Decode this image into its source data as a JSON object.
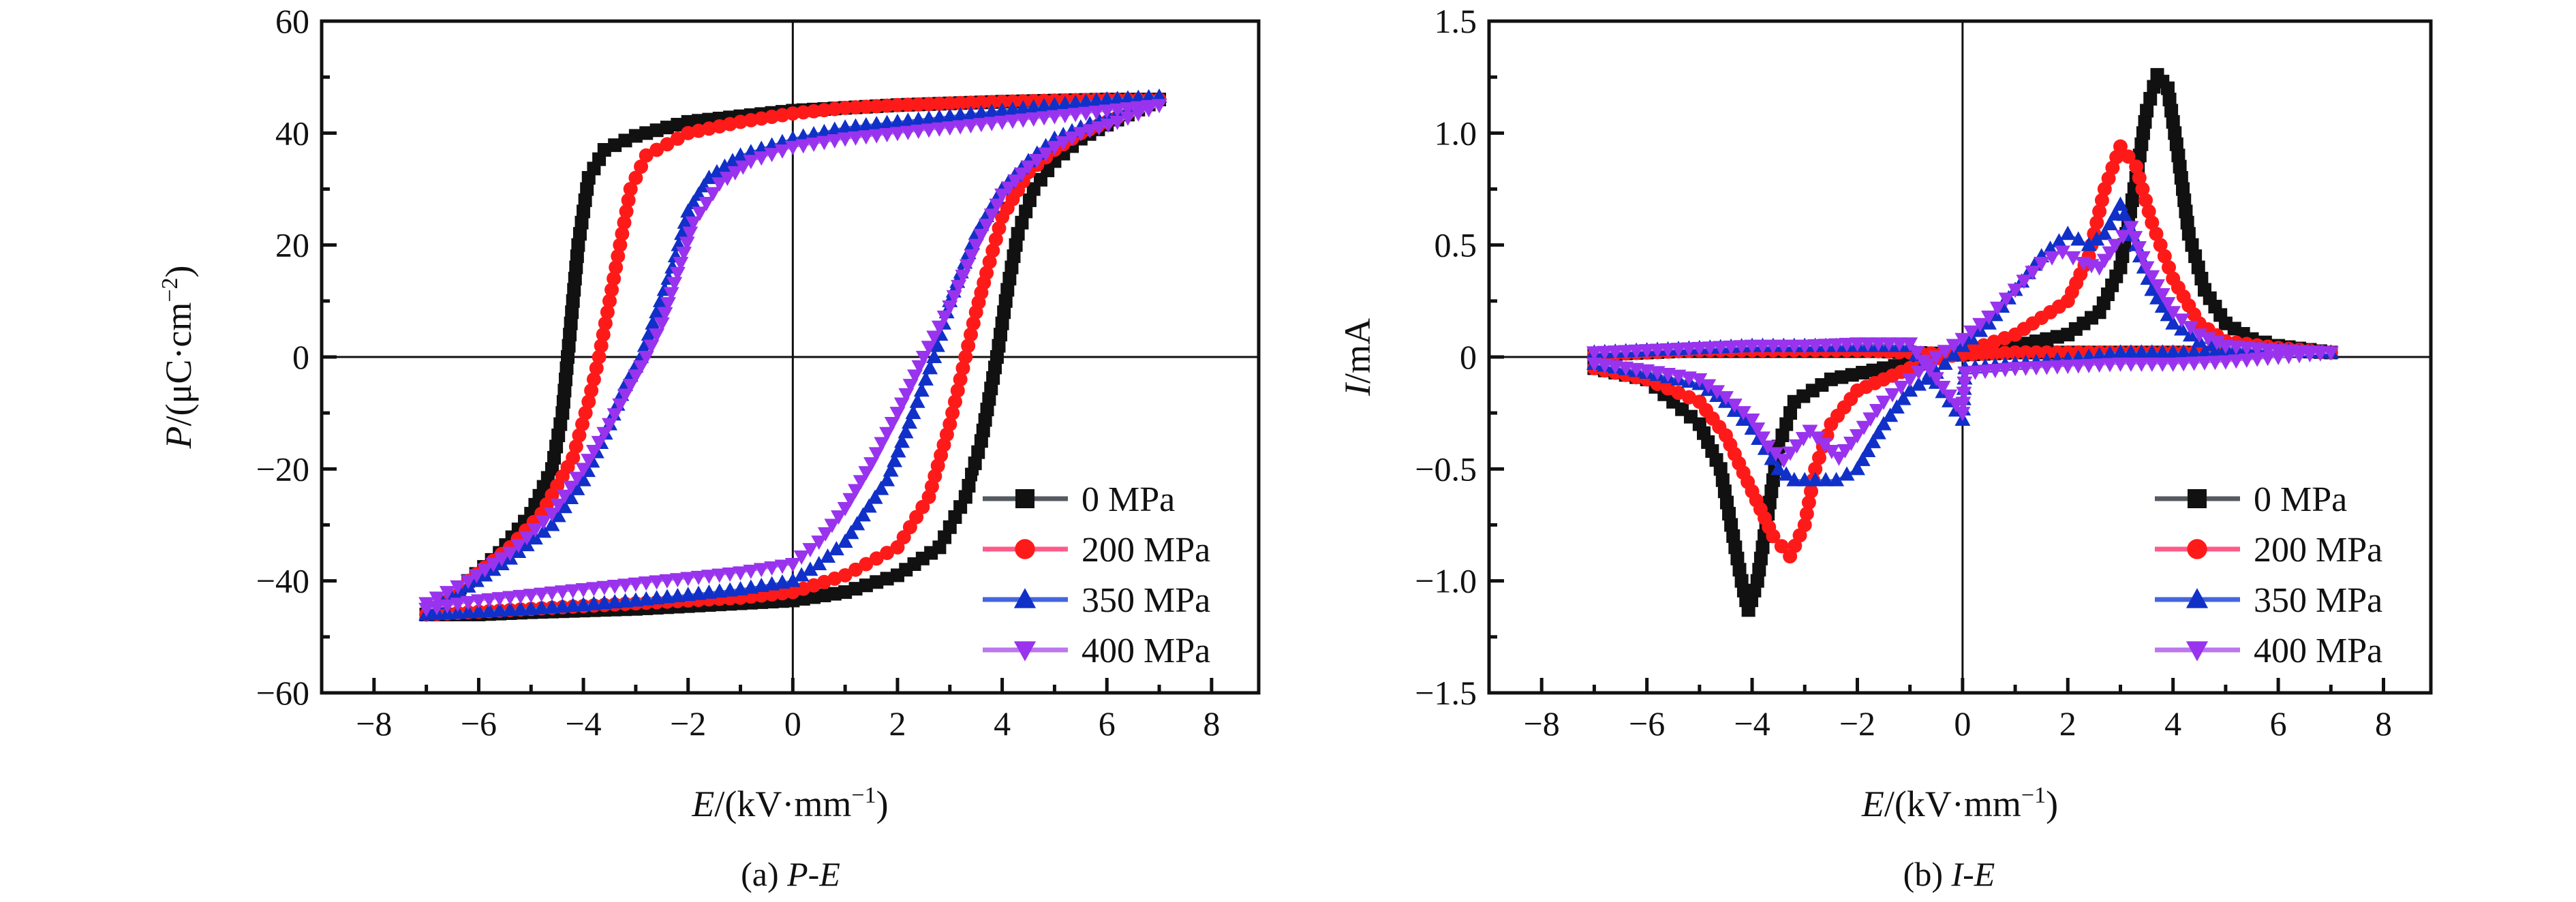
{
  "chart_data": [
    {
      "id": "a",
      "type": "scatter",
      "title": "",
      "caption_prefix": "(a) ",
      "caption_italic": "P-E",
      "xlabel_italic": "E",
      "xlabel_unit": "/(kV·mm",
      "xlabel_sup": "−1",
      "xlabel_close": ")",
      "ylabel_italic": "P",
      "ylabel_unit": "/(μC·cm",
      "ylabel_sup": "−2",
      "ylabel_close": ")",
      "xlim": [
        -9,
        8.9
      ],
      "ylim": [
        -60,
        60
      ],
      "xticks": [
        -8,
        -6,
        -4,
        -2,
        0,
        2,
        4,
        6,
        8
      ],
      "xtick_labels": [
        "−8",
        "−6",
        "−4",
        "−2",
        "0",
        "2",
        "4",
        "6",
        "8"
      ],
      "yticks": [
        -60,
        -40,
        -20,
        0,
        20,
        40,
        60
      ],
      "ytick_labels": [
        "−60",
        "−40",
        "−20",
        "0",
        "20",
        "40",
        "60"
      ],
      "zero_lines": true,
      "grid": false,
      "legend_position": "bottom-right",
      "series": [
        {
          "name": "0 MPa",
          "marker": "square",
          "color": "#111111",
          "line_color": "#555a60",
          "x": [
            -7,
            -6.2,
            -5.6,
            -5,
            -4.6,
            -4.4,
            -4.3,
            -4.2,
            -4.1,
            -3.9,
            -3.6,
            -3,
            -2,
            -1,
            0,
            1,
            2,
            3,
            4,
            5,
            6,
            7,
            6,
            5.5,
            5,
            4.6,
            4.3,
            4.1,
            3.9,
            3.6,
            3.3,
            2.8,
            2,
            1,
            0,
            -1,
            -2,
            -3,
            -4,
            -5,
            -6,
            -7
          ],
          "y": [
            -46,
            -40,
            -35,
            -28,
            -20,
            -10,
            0,
            10,
            20,
            32,
            37,
            39.5,
            42,
            43,
            44,
            44.5,
            45,
            45.3,
            45.6,
            45.8,
            46,
            46,
            41.5,
            39,
            35,
            30,
            22,
            12,
            0,
            -15,
            -25,
            -34,
            -39,
            -42,
            -43.5,
            -44,
            -44.5,
            -45,
            -45.3,
            -45.6,
            -46,
            -46
          ]
        },
        {
          "name": "200 MPa",
          "marker": "circle",
          "color": "#ff1a1a",
          "line_color": "#ff5a8a",
          "x": [
            -7,
            -6.2,
            -5.4,
            -4.8,
            -4.2,
            -3.9,
            -3.7,
            -3.5,
            -3.3,
            -3.1,
            -2.8,
            -2,
            -1,
            0,
            1,
            2,
            3,
            4,
            5,
            6,
            7,
            6,
            5.5,
            5,
            4.5,
            4,
            3.7,
            3.5,
            3.3,
            3,
            2.6,
            2,
            1,
            0,
            -1,
            -2,
            -3,
            -4,
            -5,
            -6,
            -7
          ],
          "y": [
            -46,
            -40,
            -34,
            -28,
            -18,
            -8,
            0,
            10,
            20,
            30,
            36,
            40,
            42,
            43.5,
            44.5,
            45,
            45.3,
            45.6,
            45.8,
            46,
            46,
            42,
            40,
            37,
            33,
            25,
            15,
            8,
            0,
            -12,
            -25,
            -34,
            -39,
            -42,
            -43,
            -43.5,
            -44,
            -44.5,
            -45,
            -45.5,
            -46
          ]
        },
        {
          "name": "350 MPa",
          "marker": "triangle-up",
          "color": "#1030c8",
          "line_color": "#4466dd",
          "x": [
            -7,
            -6.2,
            -5.4,
            -4.6,
            -4,
            -3.5,
            -3.2,
            -2.9,
            -2.6,
            -2.3,
            -2,
            -1.6,
            -1,
            0,
            1,
            2,
            3,
            4,
            5,
            6,
            7,
            6.2,
            5.5,
            5,
            4.5,
            4,
            3.5,
            3,
            2.7,
            2.3,
            1.8,
            1,
            0.5,
            0,
            -1,
            -2,
            -3,
            -4,
            -5,
            -6,
            -7
          ],
          "y": [
            -46,
            -41,
            -36,
            -30,
            -22,
            -12,
            -5,
            0,
            8,
            16,
            26,
            32,
            36,
            39,
            41,
            42,
            43,
            44,
            45,
            46,
            46.5,
            43.5,
            41,
            39,
            35,
            30,
            22,
            10,
            0,
            -10,
            -22,
            -33,
            -37,
            -40,
            -41.5,
            -42.5,
            -43.5,
            -44.3,
            -45,
            -45.5,
            -46
          ]
        },
        {
          "name": "400 MPa",
          "marker": "triangle-down",
          "color": "#9933ee",
          "line_color": "#bb77ee",
          "x": [
            -7,
            -6.2,
            -5.4,
            -4.6,
            -4,
            -3.5,
            -3.1,
            -2.8,
            -2.5,
            -2.2,
            -1.9,
            -1.4,
            -0.8,
            0,
            1,
            2,
            3,
            4,
            5,
            6,
            7,
            6.2,
            5.5,
            5,
            4.5,
            4,
            3.5,
            3,
            2.5,
            2,
            1.5,
            1,
            0.5,
            0,
            -1,
            -2,
            -3,
            -4,
            -5,
            -6,
            -7
          ],
          "y": [
            -44,
            -40,
            -35,
            -28,
            -20,
            -12,
            -5,
            0,
            6,
            15,
            24,
            31,
            35,
            37.5,
            39,
            40,
            41,
            42,
            43,
            44,
            45,
            42,
            40,
            37.5,
            34,
            29,
            20,
            9,
            0,
            -10,
            -19,
            -27,
            -33,
            -37,
            -38.5,
            -39.5,
            -40.5,
            -41.5,
            -42.5,
            -43.5,
            -45
          ]
        }
      ]
    },
    {
      "id": "b",
      "type": "scatter",
      "title": "",
      "caption_prefix": "(b) ",
      "caption_italic": "I-E",
      "xlabel_italic": "E",
      "xlabel_unit": "/(kV·mm",
      "xlabel_sup": "−1",
      "xlabel_close": ")",
      "ylabel_italic": "I",
      "ylabel_unit": "/mA",
      "ylabel_sup": "",
      "ylabel_close": "",
      "xlim": [
        -9,
        8.9
      ],
      "ylim": [
        -1.5,
        1.5
      ],
      "xticks": [
        -8,
        -6,
        -4,
        -2,
        0,
        2,
        4,
        6,
        8
      ],
      "xtick_labels": [
        "−8",
        "−6",
        "−4",
        "−2",
        "0",
        "2",
        "4",
        "6",
        "8"
      ],
      "yticks": [
        -1.5,
        -1.0,
        -0.5,
        0,
        0.5,
        1.0,
        1.5
      ],
      "ytick_labels": [
        "−1.5",
        "−1.0",
        "−0.5",
        "0",
        "0.5",
        "1.0",
        "1.5"
      ],
      "zero_lines": true,
      "grid": false,
      "legend_position": "bottom-right",
      "series": [
        {
          "name": "0 MPa",
          "marker": "square",
          "color": "#111111",
          "line_color": "#555a60",
          "x": [
            -7,
            -6,
            -5,
            -4.6,
            -4.4,
            -4.2,
            -4.07,
            -3.9,
            -3.7,
            -3.5,
            -3.2,
            -2.5,
            -1.5,
            0,
            1,
            2,
            2.6,
            3,
            3.3,
            3.5,
            3.7,
            3.9,
            4.1,
            4.3,
            4.6,
            5,
            5.5,
            6,
            7,
            6,
            5,
            4,
            3,
            2,
            1,
            0,
            -1,
            -2,
            -3,
            -4,
            -5,
            -6,
            -7
          ],
          "y": [
            -0.05,
            -0.1,
            -0.3,
            -0.5,
            -0.75,
            -1.0,
            -1.13,
            -1.0,
            -0.7,
            -0.4,
            -0.2,
            -0.1,
            -0.05,
            0.02,
            0.05,
            0.1,
            0.2,
            0.4,
            0.8,
            1.1,
            1.26,
            1.2,
            0.9,
            0.55,
            0.3,
            0.15,
            0.08,
            0.05,
            0.02,
            0.03,
            0.02,
            0.02,
            0.02,
            0.02,
            0.02,
            0.01,
            0.02,
            0.03,
            0.03,
            0.03,
            0.03,
            0.02,
            0.01
          ]
        },
        {
          "name": "200 MPa",
          "marker": "circle",
          "color": "#ff1a1a",
          "line_color": "#ff5a8a",
          "x": [
            -7,
            -6,
            -5,
            -4.5,
            -4,
            -3.6,
            -3.28,
            -3,
            -2.8,
            -2.5,
            -2,
            -1.5,
            -1,
            0,
            1,
            2,
            2.4,
            2.7,
            3,
            3.3,
            3.6,
            4,
            4.5,
            5,
            6,
            7,
            6,
            5,
            4,
            3,
            2,
            1,
            0,
            -1,
            -2,
            -3,
            -4,
            -5,
            -6,
            -7
          ],
          "y": [
            -0.05,
            -0.1,
            -0.2,
            -0.35,
            -0.6,
            -0.8,
            -0.89,
            -0.75,
            -0.5,
            -0.3,
            -0.15,
            -0.1,
            -0.05,
            0.02,
            0.1,
            0.25,
            0.45,
            0.75,
            0.94,
            0.85,
            0.6,
            0.35,
            0.15,
            0.07,
            0.04,
            0.02,
            0.03,
            0.02,
            0.02,
            0.02,
            0.02,
            0.02,
            0.01,
            0.02,
            0.03,
            0.03,
            0.03,
            0.03,
            0.02,
            0.01
          ]
        },
        {
          "name": "350 MPa",
          "marker": "triangle-up",
          "color": "#1030c8",
          "line_color": "#4466dd",
          "x": [
            -7,
            -6,
            -5,
            -4.5,
            -4,
            -3.5,
            -3.2,
            -2.8,
            -2.4,
            -2,
            -1.5,
            -1,
            -0.5,
            0,
            0.5,
            1,
            1.5,
            2,
            2.4,
            2.7,
            3,
            3.3,
            3.6,
            4,
            4.5,
            5,
            6,
            7,
            6,
            5,
            4,
            3,
            2,
            1,
            0.05,
            0,
            -1,
            -2,
            -3,
            -4,
            -5,
            -6,
            -7
          ],
          "y": [
            -0.03,
            -0.07,
            -0.12,
            -0.2,
            -0.32,
            -0.5,
            -0.55,
            -0.55,
            -0.55,
            -0.5,
            -0.3,
            -0.15,
            -0.07,
            0.05,
            0.15,
            0.3,
            0.45,
            0.55,
            0.5,
            0.55,
            0.68,
            0.5,
            0.3,
            0.15,
            0.07,
            0.04,
            0.03,
            0.02,
            0.03,
            0.02,
            0.02,
            0.02,
            -0.01,
            -0.03,
            -0.05,
            -0.28,
            0.05,
            0.05,
            0.05,
            0.05,
            0.04,
            0.03,
            0.02
          ]
        },
        {
          "name": "400 MPa",
          "marker": "triangle-down",
          "color": "#9933ee",
          "line_color": "#bb77ee",
          "x": [
            -7,
            -6,
            -5,
            -4.5,
            -4,
            -3.7,
            -3.4,
            -2.9,
            -2.35,
            -2,
            -1.5,
            -1,
            -0.5,
            0,
            0.5,
            1,
            1.5,
            1.9,
            2.3,
            2.6,
            2.9,
            3.2,
            3.5,
            4,
            4.5,
            5,
            6,
            7,
            6,
            5,
            4,
            3,
            2,
            1,
            0.05,
            0,
            -1,
            -2,
            -3,
            -4,
            -5,
            -6,
            -7
          ],
          "y": [
            -0.03,
            -0.06,
            -0.1,
            -0.18,
            -0.28,
            -0.4,
            -0.46,
            -0.33,
            -0.45,
            -0.35,
            -0.2,
            -0.1,
            0.0,
            0.08,
            0.18,
            0.3,
            0.42,
            0.47,
            0.42,
            0.4,
            0.5,
            0.58,
            0.4,
            0.2,
            0.1,
            0.05,
            0.03,
            0.02,
            0.0,
            -0.02,
            -0.03,
            -0.03,
            -0.04,
            -0.05,
            -0.07,
            -0.25,
            0.06,
            0.06,
            0.05,
            0.05,
            0.04,
            0.03,
            0.02
          ]
        }
      ]
    }
  ]
}
